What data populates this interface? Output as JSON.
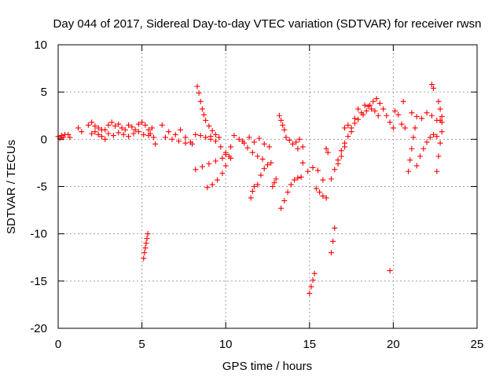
{
  "chart_data": {
    "type": "scatter",
    "title": "Day 044 of 2017, Sidereal Day-to-day VTEC variation (SDTVAR) for receiver rwsn",
    "xlabel": "GPS time / hours",
    "ylabel": "SDTVAR / TECUs",
    "xlim": [
      0,
      25
    ],
    "ylim": [
      -20,
      10
    ],
    "xticks": [
      "0",
      "5",
      "10",
      "15",
      "20",
      "25"
    ],
    "yticks": [
      "10",
      "5",
      "0",
      "-5",
      "-10",
      "-15",
      "-20"
    ],
    "grid": true,
    "marker": "+",
    "color": "#ff0000",
    "segments": [
      {
        "x": [
          0.0,
          0.1,
          0.2,
          0.3,
          0.4
        ],
        "y": [
          0.3,
          0.1,
          0.4,
          0.2,
          0.5
        ]
      },
      {
        "x": [
          0.6,
          0.7
        ],
        "y": [
          0.5,
          0.2
        ]
      },
      {
        "x": [
          1.2,
          1.4
        ],
        "y": [
          1.2,
          0.8
        ]
      },
      {
        "x": [
          1.8,
          2.0,
          2.2,
          2.4,
          2.6
        ],
        "y": [
          1.5,
          1.8,
          1.4,
          1.2,
          1.0
        ]
      },
      {
        "x": [
          2.0,
          2.2,
          2.4,
          2.6,
          2.8
        ],
        "y": [
          0.6,
          0.8,
          0.5,
          0.3,
          0.0
        ]
      },
      {
        "x": [
          2.8,
          3.0,
          3.2,
          3.4,
          3.6,
          3.8,
          4.0,
          4.2,
          4.4,
          4.6,
          4.8,
          5.0,
          5.2,
          5.4,
          5.5
        ],
        "y": [
          1.0,
          1.5,
          1.8,
          1.4,
          1.6,
          1.2,
          1.0,
          1.5,
          1.3,
          1.0,
          1.6,
          1.8,
          1.5,
          1.0,
          0.6
        ]
      },
      {
        "x": [
          3.0,
          3.3,
          3.6,
          3.9,
          4.2,
          4.5,
          4.8,
          5.1,
          5.4
        ],
        "y": [
          0.6,
          0.4,
          0.7,
          0.5,
          0.3,
          0.6,
          0.8,
          0.5,
          0.4
        ]
      },
      {
        "x": [
          5.1,
          5.15,
          5.2,
          5.25,
          5.3,
          5.35
        ],
        "y": [
          -12.6,
          -12.0,
          -11.5,
          -11.0,
          -10.5,
          -10.0
        ]
      },
      {
        "x": [
          5.6,
          5.7,
          5.8
        ],
        "y": [
          1.2,
          0.2,
          -0.5
        ]
      },
      {
        "x": [
          6.2,
          6.6,
          7.0,
          7.3,
          7.6,
          7.9,
          8.2,
          8.5,
          8.8,
          9.1
        ],
        "y": [
          1.5,
          0.8,
          0.5,
          1.0,
          0.2,
          -0.3,
          0.5,
          0.4,
          0.2,
          0.0
        ]
      },
      {
        "x": [
          6.4,
          6.8,
          7.2,
          7.6,
          8.0
        ],
        "y": [
          0.2,
          0.0,
          -0.2,
          -0.4,
          -0.5
        ]
      },
      {
        "x": [
          8.3,
          8.4,
          8.5,
          8.6,
          8.7,
          8.8,
          9.0,
          9.2,
          9.4,
          9.6
        ],
        "y": [
          5.6,
          4.9,
          4.0,
          3.2,
          2.6,
          2.0,
          1.4,
          0.9,
          0.5,
          0.2
        ]
      },
      {
        "x": [
          8.2,
          8.6,
          9.0,
          9.4,
          9.8,
          10.0,
          10.3
        ],
        "y": [
          -3.2,
          -2.9,
          -2.6,
          -2.3,
          -2.0,
          -1.6,
          -0.8
        ]
      },
      {
        "x": [
          8.9,
          9.2,
          9.5,
          9.8,
          10.0,
          10.2
        ],
        "y": [
          -5.1,
          -4.8,
          -4.3,
          -3.6,
          -2.8,
          -1.8
        ]
      },
      {
        "x": [
          9.1,
          9.4,
          9.7,
          10.0,
          10.3
        ],
        "y": [
          0.3,
          -0.2,
          -0.8,
          -1.4,
          -2.0
        ]
      },
      {
        "x": [
          10.5,
          10.8,
          11.1,
          11.4,
          11.7,
          12.0,
          12.3,
          12.6
        ],
        "y": [
          0.4,
          0.0,
          -0.4,
          0.2,
          -0.3,
          0.1,
          -0.5,
          -0.8
        ]
      },
      {
        "x": [
          11.0,
          11.3,
          11.6,
          11.9,
          12.2
        ],
        "y": [
          -0.2,
          -0.9,
          -1.4,
          -1.8,
          -2.1
        ]
      },
      {
        "x": [
          11.5,
          11.6,
          11.7
        ],
        "y": [
          -6.2,
          -5.5,
          -5.0
        ]
      },
      {
        "x": [
          11.9,
          12.1,
          12.3,
          12.5,
          12.7
        ],
        "y": [
          -4.8,
          -3.8,
          -3.1,
          -2.7,
          -2.5
        ]
      },
      {
        "x": [
          12.8,
          12.9,
          13.0
        ],
        "y": [
          -5.0,
          -4.6,
          -4.2
        ]
      },
      {
        "x": [
          13.2,
          13.3,
          13.4,
          13.5
        ],
        "y": [
          2.5,
          2.0,
          1.5,
          1.0
        ]
      },
      {
        "x": [
          13.3,
          13.5,
          13.7,
          13.9,
          14.1,
          14.3,
          14.5
        ],
        "y": [
          -7.3,
          -6.5,
          -5.6,
          -4.8,
          -4.3,
          -4.1,
          -4.0
        ]
      },
      {
        "x": [
          13.6,
          13.8,
          14.0,
          14.2,
          14.4,
          14.6
        ],
        "y": [
          0.2,
          -0.1,
          -0.5,
          -0.3,
          0.0,
          -0.8
        ]
      },
      {
        "x": [
          14.3,
          14.6,
          14.9,
          15.2,
          15.5,
          15.8
        ],
        "y": [
          -1.0,
          -2.5,
          -3.4,
          -3.0,
          -3.3,
          -4.3
        ]
      },
      {
        "x": [
          15.0,
          15.1,
          15.2,
          15.3
        ],
        "y": [
          -16.3,
          -15.6,
          -14.9,
          -14.2
        ]
      },
      {
        "x": [
          15.4,
          15.6,
          15.8,
          16.0
        ],
        "y": [
          -5.2,
          -5.6,
          -6.0,
          -6.2
        ]
      },
      {
        "x": [
          16.0,
          16.1
        ],
        "y": [
          -1.0,
          -1.4
        ]
      },
      {
        "x": [
          16.3,
          16.4,
          16.5
        ],
        "y": [
          -12.0,
          -10.8,
          -9.4
        ]
      },
      {
        "x": [
          16.3,
          16.5,
          16.7,
          16.9,
          17.1
        ],
        "y": [
          -4.2,
          -3.2,
          -2.2,
          -1.2,
          -0.4
        ]
      },
      {
        "x": [
          16.7,
          16.9,
          17.1,
          17.3,
          17.5,
          17.7,
          17.9
        ],
        "y": [
          -2.6,
          -1.8,
          -0.8,
          0.3,
          1.2,
          2.2,
          3.2
        ]
      },
      {
        "x": [
          17.1,
          17.3,
          17.5,
          17.7,
          17.9,
          18.1,
          18.3
        ],
        "y": [
          1.2,
          1.5,
          0.8,
          1.7,
          2.1,
          2.8,
          3.6
        ]
      },
      {
        "x": [
          18.2,
          18.4,
          18.6,
          18.8,
          19.0,
          19.2,
          19.4,
          19.6,
          19.8,
          20.0
        ],
        "y": [
          2.6,
          3.0,
          3.6,
          4.0,
          4.3,
          3.8,
          3.2,
          2.5,
          1.8,
          1.2
        ]
      },
      {
        "x": [
          18.5,
          18.7,
          18.9,
          19.1
        ],
        "y": [
          3.5,
          3.2,
          3.0,
          2.5
        ]
      },
      {
        "x": [
          19.8
        ],
        "y": [
          -13.9
        ]
      },
      {
        "x": [
          20.1,
          20.3,
          20.5,
          20.7
        ],
        "y": [
          3.0,
          2.6,
          1.6,
          1.2
        ]
      },
      {
        "x": [
          20.6
        ],
        "y": [
          4.0
        ]
      },
      {
        "x": [
          20.9,
          21.0,
          21.1,
          21.2,
          21.3
        ],
        "y": [
          -3.4,
          -2.2,
          -1.0,
          0.2,
          1.2
        ]
      },
      {
        "x": [
          21.1,
          21.4,
          21.7,
          22.0,
          22.3,
          22.6
        ],
        "y": [
          2.8,
          2.4,
          2.2,
          2.8,
          2.5,
          2.0
        ]
      },
      {
        "x": [
          21.4,
          21.6,
          21.8,
          22.0,
          22.2,
          22.4,
          22.6
        ],
        "y": [
          -2.8,
          -1.8,
          -1.0,
          -0.3,
          0.2,
          0.5,
          0.3
        ]
      },
      {
        "x": [
          22.3,
          22.4
        ],
        "y": [
          5.8,
          5.4
        ]
      },
      {
        "x": [
          22.7,
          22.8,
          22.9
        ],
        "y": [
          4.0,
          3.2,
          2.4
        ]
      },
      {
        "x": [
          22.6,
          22.7,
          22.8,
          22.9
        ],
        "y": [
          -3.4,
          -1.8,
          -0.4,
          0.8
        ]
      },
      {
        "x": [
          22.8,
          22.9
        ],
        "y": [
          2.0,
          1.8
        ]
      }
    ]
  }
}
